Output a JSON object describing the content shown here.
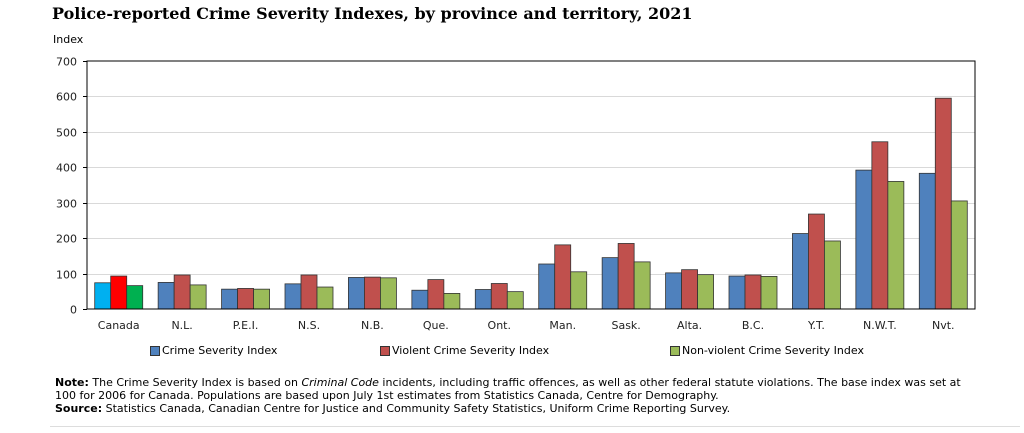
{
  "title": "Police-reported Crime Severity Indexes, by province and territory, 2021",
  "note": {
    "label": "Note:",
    "text_before": " The Crime Severity Index is based on ",
    "text_italic": "Criminal Code",
    "text_after": " incidents, including traffic offences, as well as other federal statute violations.  The base index was set at 100 for 2006 for Canada. Populations are based upon July 1st estimates from Statistics Canada, Centre for Demography."
  },
  "source": {
    "label": "Source:",
    "text": " Statistics Canada, Canadian Centre for Justice and Community Safety Statistics, Uniform Crime Reporting Survey."
  },
  "chart_data": {
    "type": "bar",
    "title": "Police-reported Crime Severity Indexes, by province and territory, 2021",
    "xlabel": "",
    "ylabel": "Index",
    "ylim": [
      0,
      700
    ],
    "yticks": [
      0,
      100,
      200,
      300,
      400,
      500,
      600,
      700
    ],
    "grid": true,
    "legend_position": "bottom",
    "categories": [
      "Canada",
      "N.L.",
      "P.E.I.",
      "N.S.",
      "N.B.",
      "Que.",
      "Ont.",
      "Man.",
      "Sask.",
      "Alta.",
      "B.C.",
      "Y.T.",
      "N.W.T.",
      "Nvt."
    ],
    "highlight": {
      "category": "Canada",
      "colors": [
        "#00b0f0",
        "#ff0000",
        "#00b050"
      ]
    },
    "series": [
      {
        "name": "Crime Severity Index",
        "color": "#4f81bd",
        "values": [
          74,
          75,
          56,
          71,
          89,
          53,
          55,
          127,
          145,
          102,
          93,
          213,
          392,
          383
        ]
      },
      {
        "name": "Violent Crime Severity Index",
        "color": "#c0504d",
        "values": [
          93,
          96,
          58,
          96,
          90,
          83,
          72,
          181,
          185,
          111,
          96,
          268,
          472,
          595
        ]
      },
      {
        "name": "Non-violent Crime Severity Index",
        "color": "#9bbb59",
        "values": [
          66,
          68,
          56,
          62,
          88,
          44,
          49,
          105,
          133,
          97,
          92,
          192,
          360,
          305
        ]
      }
    ]
  }
}
